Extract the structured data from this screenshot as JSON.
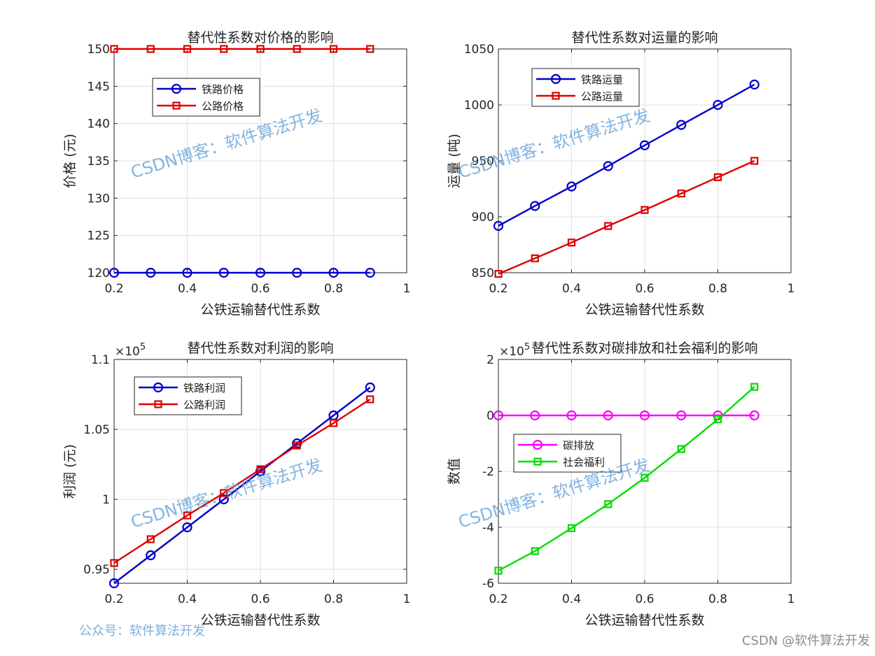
{
  "colors": {
    "blue": "#0000c8",
    "red": "#dd0000",
    "magenta": "#ff00ff",
    "green": "#00dd00",
    "grid": "#e0e0e0",
    "axis": "#262626",
    "watermark": "#5b9bd5"
  },
  "chart_data": [
    {
      "type": "line",
      "title": "替代性系数对价格的影响",
      "xlabel": "公铁运输替代性系数",
      "ylabel": "价格 (元)",
      "xlim": [
        0.2,
        1
      ],
      "ylim": [
        120,
        150
      ],
      "xticks": [
        "0.2",
        "0.4",
        "0.6",
        "0.8",
        "1"
      ],
      "xtick_values": [
        0.2,
        0.4,
        0.6,
        0.8,
        1.0
      ],
      "yticks": [
        "120",
        "125",
        "130",
        "135",
        "140",
        "145",
        "150"
      ],
      "ytick_values": [
        120,
        125,
        130,
        135,
        140,
        145,
        150
      ],
      "grid": true,
      "legend_position": "upper-left",
      "x": [
        0.2,
        0.3,
        0.4,
        0.5,
        0.6,
        0.7,
        0.8,
        0.9
      ],
      "series": [
        {
          "name": "铁路价格",
          "marker": "circle",
          "color": "#0000c8",
          "values": [
            120,
            120,
            120,
            120,
            120,
            120,
            120,
            120
          ]
        },
        {
          "name": "公路价格",
          "marker": "square",
          "color": "#dd0000",
          "values": [
            150,
            150,
            150,
            150,
            150,
            150,
            150,
            150
          ]
        }
      ]
    },
    {
      "type": "line",
      "title": "替代性系数对运量的影响",
      "xlabel": "公铁运输替代性系数",
      "ylabel": "运量 (吨)",
      "xlim": [
        0.2,
        1
      ],
      "ylim": [
        850,
        1050
      ],
      "xticks": [
        "0.2",
        "0.4",
        "0.6",
        "0.8",
        "1"
      ],
      "xtick_values": [
        0.2,
        0.4,
        0.6,
        0.8,
        1.0
      ],
      "yticks": [
        "850",
        "900",
        "950",
        "1000",
        "1050"
      ],
      "ytick_values": [
        850,
        900,
        950,
        1000,
        1050
      ],
      "grid": true,
      "legend_position": "upper-left",
      "x": [
        0.2,
        0.3,
        0.4,
        0.5,
        0.6,
        0.7,
        0.8,
        0.9
      ],
      "series": [
        {
          "name": "铁路运量",
          "marker": "circle",
          "color": "#0000c8",
          "values": [
            891.9,
            909.7,
            927.1,
            945.3,
            963.9,
            982.1,
            1000.0,
            1018.2
          ]
        },
        {
          "name": "公路运量",
          "marker": "square",
          "color": "#dd0000",
          "values": [
            849.0,
            862.9,
            877.0,
            891.8,
            906.1,
            920.8,
            935.4,
            950.0
          ]
        }
      ]
    },
    {
      "type": "line",
      "title": "替代性系数对利润的影响",
      "xlabel": "公铁运输替代性系数",
      "ylabel": "利润 (元)",
      "exponent": "×10",
      "exponent_power": "5",
      "xlim": [
        0.2,
        1
      ],
      "ylim": [
        0.94,
        1.1
      ],
      "xticks": [
        "0.2",
        "0.4",
        "0.6",
        "0.8",
        "1"
      ],
      "xtick_values": [
        0.2,
        0.4,
        0.6,
        0.8,
        1.0
      ],
      "yticks": [
        "0.95",
        "1",
        "1.05",
        "1.1"
      ],
      "ytick_values": [
        0.95,
        1.0,
        1.05,
        1.1
      ],
      "grid": true,
      "legend_position": "upper-left",
      "x": [
        0.2,
        0.3,
        0.4,
        0.5,
        0.6,
        0.7,
        0.8,
        0.9
      ],
      "series": [
        {
          "name": "铁路利润",
          "marker": "circle",
          "color": "#0000c8",
          "values": [
            0.94,
            0.96,
            0.98,
            1.0,
            1.02,
            1.04,
            1.06,
            1.08
          ]
        },
        {
          "name": "公路利润",
          "marker": "square",
          "color": "#dd0000",
          "values": [
            0.9545,
            0.9715,
            0.9885,
            1.0045,
            1.0215,
            1.0385,
            1.0545,
            1.0715
          ]
        }
      ]
    },
    {
      "type": "line",
      "title": "替代性系数对碳排放和社会福利的影响",
      "xlabel": "公铁运输替代性系数",
      "ylabel": "数值",
      "exponent": "×10",
      "exponent_power": "5",
      "xlim": [
        0.2,
        1
      ],
      "ylim": [
        -6,
        2
      ],
      "xticks": [
        "0.2",
        "0.4",
        "0.6",
        "0.8",
        "1"
      ],
      "xtick_values": [
        0.2,
        0.4,
        0.6,
        0.8,
        1.0
      ],
      "yticks": [
        "-6",
        "-4",
        "-2",
        "0",
        "2"
      ],
      "ytick_values": [
        -6,
        -4,
        -2,
        0,
        2
      ],
      "grid": true,
      "legend_position": "middle-left",
      "x": [
        0.2,
        0.3,
        0.4,
        0.5,
        0.6,
        0.7,
        0.8,
        0.9
      ],
      "series": [
        {
          "name": "碳排放",
          "marker": "circle",
          "color": "#ff00ff",
          "values": [
            0,
            0,
            0,
            0,
            0,
            0,
            0,
            0
          ]
        },
        {
          "name": "社会福利",
          "marker": "square",
          "color": "#00dd00",
          "values": [
            -5.55,
            -4.85,
            -4.03,
            -3.17,
            -2.23,
            -1.2,
            -0.14,
            1.02
          ]
        }
      ]
    }
  ],
  "watermark": "CSDN博客：软件算法开发",
  "footer": {
    "left": "公众号：软件算法开发",
    "right": "CSDN @软件算法开发"
  }
}
